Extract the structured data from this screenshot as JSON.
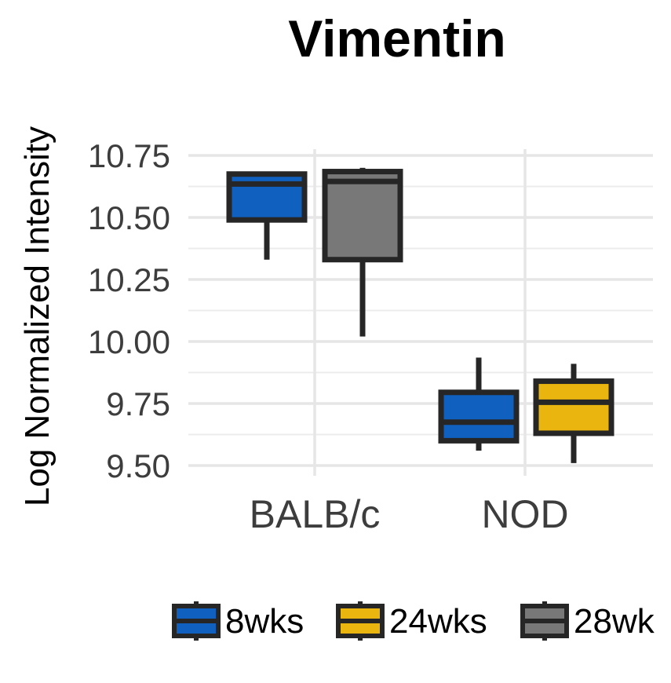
{
  "chart_data": {
    "type": "boxplot",
    "title": "Vimentin",
    "xlabel": "",
    "ylabel": "Log Normalized Intensity",
    "ylim": [
      9.5,
      10.75
    ],
    "yticks": [
      "9.50",
      "9.75",
      "10.00",
      "10.25",
      "10.50",
      "10.75"
    ],
    "categories": [
      "BALB/c",
      "NOD"
    ],
    "grid": true,
    "legend_position": "bottom",
    "legend": [
      {
        "label": "8wks",
        "color": "#1060bf"
      },
      {
        "label": "24wks",
        "color": "#ebb50f"
      },
      {
        "label": "28wk",
        "color": "#787878"
      }
    ],
    "boxes": [
      {
        "category": "BALB/c",
        "series": "8wks",
        "color": "#1060bf",
        "whisker_low": 10.33,
        "q1": 10.49,
        "median": 10.635,
        "q3": 10.675,
        "whisker_high": 10.675
      },
      {
        "category": "BALB/c",
        "series": "28wk",
        "color": "#787878",
        "whisker_low": 10.02,
        "q1": 10.33,
        "median": 10.645,
        "q3": 10.685,
        "whisker_high": 10.7
      },
      {
        "category": "NOD",
        "series": "8wks",
        "color": "#1060bf",
        "whisker_low": 9.56,
        "q1": 9.6,
        "median": 9.675,
        "q3": 9.795,
        "whisker_high": 9.935
      },
      {
        "category": "NOD",
        "series": "24wks",
        "color": "#ebb50f",
        "whisker_low": 9.51,
        "q1": 9.63,
        "median": 9.755,
        "q3": 9.84,
        "whisker_high": 9.91
      }
    ]
  }
}
